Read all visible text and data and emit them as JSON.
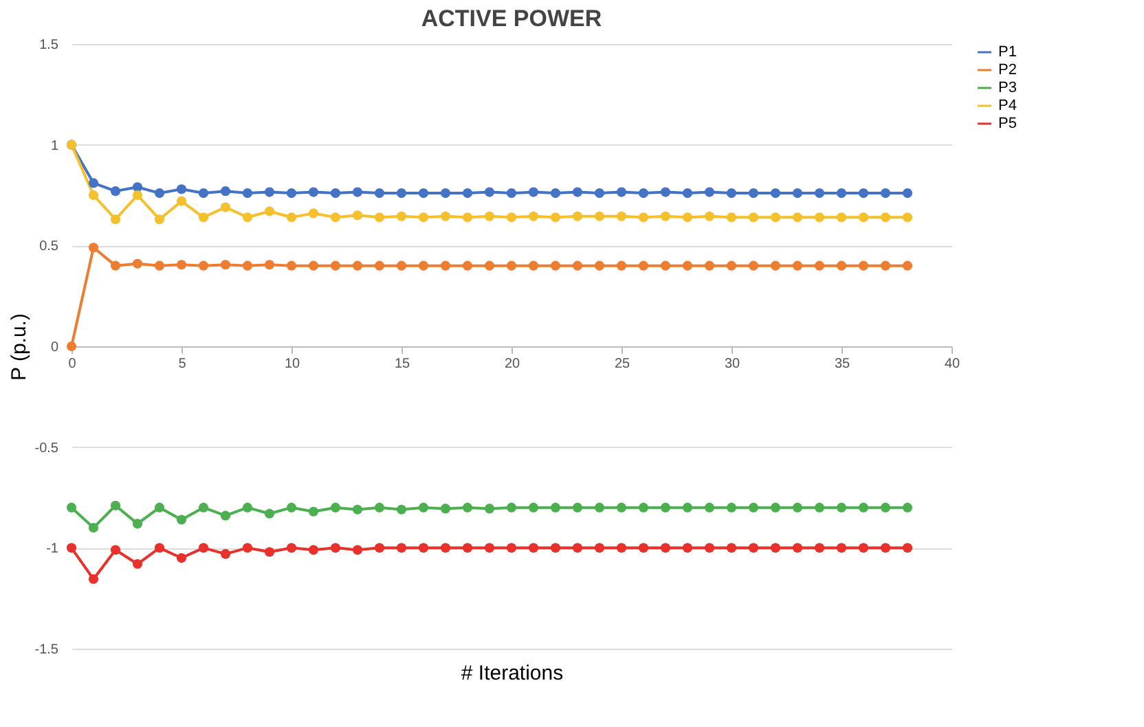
{
  "chart_data": {
    "type": "line",
    "title": "ACTIVE POWER",
    "xlabel": "# Iterations",
    "ylabel": "P (p.u.)",
    "x": [
      0,
      1,
      2,
      3,
      4,
      5,
      6,
      7,
      8,
      9,
      10,
      11,
      12,
      13,
      14,
      15,
      16,
      17,
      18,
      19,
      20,
      21,
      22,
      23,
      24,
      25,
      26,
      27,
      28,
      29,
      30,
      31,
      32,
      33,
      34,
      35,
      36,
      37,
      38
    ],
    "series": [
      {
        "name": "P1",
        "color": "#4472c4",
        "values": [
          1,
          0.81,
          0.77,
          0.79,
          0.76,
          0.78,
          0.76,
          0.77,
          0.76,
          0.765,
          0.76,
          0.765,
          0.76,
          0.765,
          0.76,
          0.76,
          0.76,
          0.76,
          0.76,
          0.765,
          0.76,
          0.765,
          0.76,
          0.765,
          0.76,
          0.765,
          0.76,
          0.765,
          0.76,
          0.765,
          0.76,
          0.76,
          0.76,
          0.76,
          0.76,
          0.76,
          0.76,
          0.76,
          0.76
        ]
      },
      {
        "name": "P2",
        "color": "#ed7d31",
        "values": [
          0,
          0.49,
          0.4,
          0.41,
          0.4,
          0.405,
          0.4,
          0.405,
          0.4,
          0.405,
          0.4,
          0.4,
          0.4,
          0.4,
          0.4,
          0.4,
          0.4,
          0.4,
          0.4,
          0.4,
          0.4,
          0.4,
          0.4,
          0.4,
          0.4,
          0.4,
          0.4,
          0.4,
          0.4,
          0.4,
          0.4,
          0.4,
          0.4,
          0.4,
          0.4,
          0.4,
          0.4,
          0.4,
          0.4
        ]
      },
      {
        "name": "P3",
        "color": "#4caf50",
        "values": [
          -0.8,
          -0.9,
          -0.79,
          -0.88,
          -0.8,
          -0.86,
          -0.8,
          -0.84,
          -0.8,
          -0.83,
          -0.8,
          -0.82,
          -0.8,
          -0.81,
          -0.8,
          -0.81,
          -0.8,
          -0.805,
          -0.8,
          -0.805,
          -0.8,
          -0.8,
          -0.8,
          -0.8,
          -0.8,
          -0.8,
          -0.8,
          -0.8,
          -0.8,
          -0.8,
          -0.8,
          -0.8,
          -0.8,
          -0.8,
          -0.8,
          -0.8,
          -0.8,
          -0.8,
          -0.8
        ]
      },
      {
        "name": "P4",
        "color": "#f5c02e",
        "values": [
          1,
          0.75,
          0.63,
          0.75,
          0.63,
          0.72,
          0.64,
          0.69,
          0.64,
          0.67,
          0.64,
          0.66,
          0.64,
          0.65,
          0.64,
          0.645,
          0.64,
          0.645,
          0.64,
          0.645,
          0.64,
          0.645,
          0.64,
          0.645,
          0.645,
          0.645,
          0.64,
          0.645,
          0.64,
          0.645,
          0.64,
          0.64,
          0.64,
          0.64,
          0.64,
          0.64,
          0.64,
          0.64,
          0.64
        ]
      },
      {
        "name": "P5",
        "color": "#e8312a",
        "values": [
          -1,
          -1.155,
          -1.01,
          -1.08,
          -1,
          -1.05,
          -1,
          -1.03,
          -1,
          -1.02,
          -1,
          -1.01,
          -1,
          -1.01,
          -1,
          -1,
          -1,
          -1,
          -1,
          -1,
          -1,
          -1,
          -1,
          -1,
          -1,
          -1,
          -1,
          -1,
          -1,
          -1,
          -1,
          -1,
          -1,
          -1,
          -1,
          -1,
          -1,
          -1,
          -1
        ]
      }
    ],
    "xlim": [
      0,
      40
    ],
    "xticks": [
      0,
      5,
      10,
      15,
      20,
      25,
      30,
      35,
      40
    ],
    "ylim": [
      -1.5,
      1.5
    ],
    "yticks": [
      -1.5,
      -1,
      -0.5,
      0,
      0.5,
      1,
      1.5
    ],
    "grid": "y",
    "legend": "right",
    "marker": "circle",
    "line_style": "solid"
  }
}
